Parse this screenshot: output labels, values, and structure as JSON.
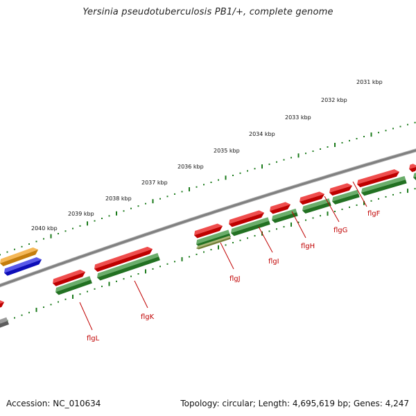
{
  "title": "Yersinia pseudotuberculosis PB1/+, complete genome",
  "footer": {
    "accession": "Accession: NC_010634",
    "summary": "Topology: circular; Length: 4,695,619 bp; Genes: 4,247"
  },
  "colors": {
    "background": "#ffffff",
    "backbone": "#7f7f7f",
    "tick": "#1a7a1a",
    "cds_red": "#e80000",
    "gene_green": "#2a8a2a",
    "label_red": "#c00000",
    "orange": "#f09a10",
    "blue": "#1010e0",
    "gray": "#707070",
    "olive": "#8a9a40"
  },
  "scale_labels": [
    {
      "text": "2031 kbp"
    },
    {
      "text": "2032 kbp"
    },
    {
      "text": "2033 kbp"
    },
    {
      "text": "2034 kbp"
    },
    {
      "text": "2035 kbp"
    },
    {
      "text": "2036 kbp"
    },
    {
      "text": "2037 kbp"
    },
    {
      "text": "2038 kbp"
    },
    {
      "text": "2039 kbp"
    },
    {
      "text": "2040 kbp"
    }
  ],
  "gene_labels": [
    {
      "name": "flgF"
    },
    {
      "name": "flgG"
    },
    {
      "name": "flgH"
    },
    {
      "name": "flgI"
    },
    {
      "name": "flgJ"
    },
    {
      "name": "flgK"
    },
    {
      "name": "flgL"
    }
  ]
}
